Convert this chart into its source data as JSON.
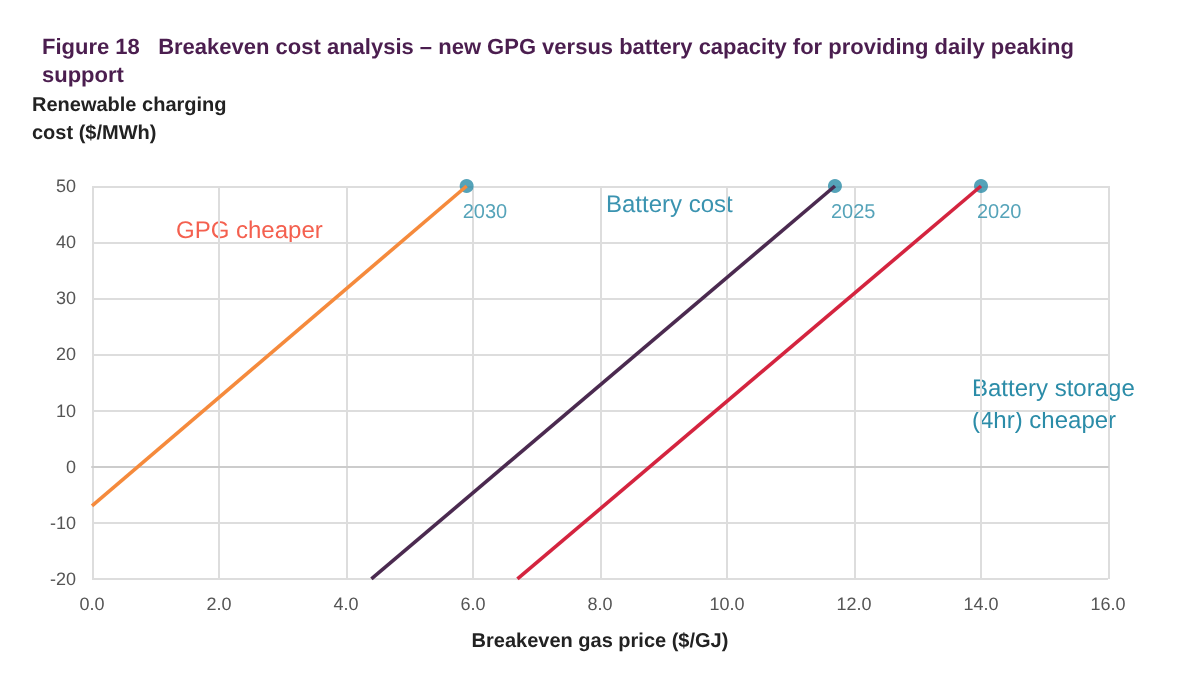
{
  "chart_data": {
    "type": "line",
    "title": "Figure 18   Breakeven cost analysis – new GPG versus battery capacity for providing daily peaking support",
    "xlabel": "Breakeven gas price ($/GJ)",
    "ylabel": "Renewable charging\ncost ($/MWh)",
    "series": [
      {
        "color": "#f58a3c",
        "x": [
          0,
          5.9
        ],
        "values": [
          -7,
          50
        ]
      },
      {
        "color": "#4b2a50",
        "x": [
          4.4,
          11.7
        ],
        "values": [
          -20,
          50
        ]
      },
      {
        "color": "#d4243f",
        "x": [
          6.7,
          14.0
        ],
        "values": [
          -20,
          50
        ]
      }
    ],
    "annotations": [
      {
        "text": "2030",
        "x": 5.9,
        "y": 50
      },
      {
        "text": "2025",
        "x": 11.7,
        "y": 50
      },
      {
        "text": "2020",
        "x": 14.0,
        "y": 50
      },
      "GPG cheaper",
      "Battery cost",
      "Battery storage\n(4hr) cheaper"
    ],
    "xlim": [
      0,
      16
    ],
    "ylim": [
      -20,
      50
    ],
    "xticks": [
      {
        "value": 0,
        "label": "0.0"
      },
      {
        "value": 2,
        "label": "2.0"
      },
      {
        "value": 4,
        "label": "4.0"
      },
      {
        "value": 6,
        "label": "6.0"
      },
      {
        "value": 8,
        "label": "8.0"
      },
      {
        "value": 10,
        "label": "10.0"
      },
      {
        "value": 12,
        "label": "12.0"
      },
      {
        "value": 14,
        "label": "14.0"
      },
      {
        "value": 16,
        "label": "16.0"
      }
    ],
    "yticks": [
      -20,
      -10,
      0,
      10,
      20,
      30,
      40,
      50
    ],
    "grid": true,
    "line_style": "solid"
  }
}
